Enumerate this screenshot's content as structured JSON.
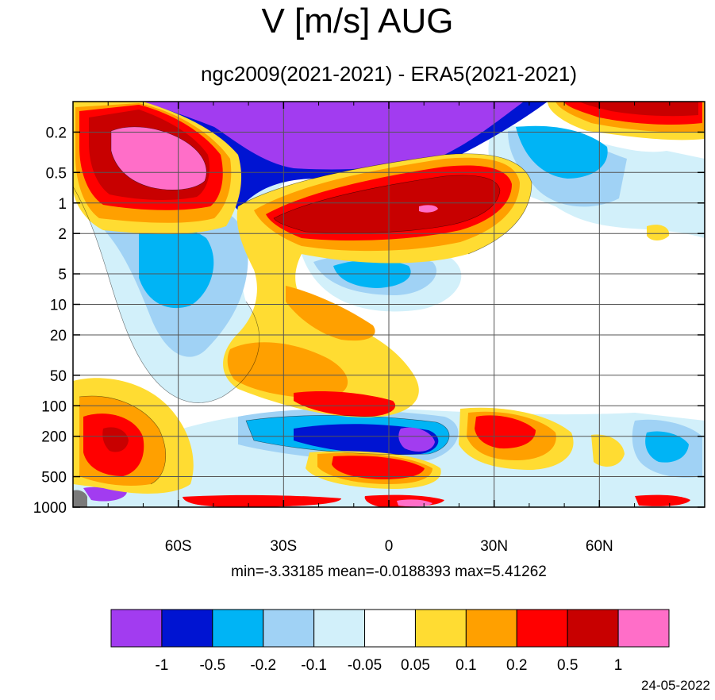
{
  "title": "V [m/s] AUG",
  "subtitle": "ngc2009(2021-2021) - ERA5(2021-2021)",
  "stats": "min=-3.33185   mean=-0.0188393   max=5.41262",
  "date": "24-05-2022",
  "chart_data": {
    "type": "heatmap",
    "title": "V [m/s] AUG",
    "subtitle": "ngc2009(2021-2021) - ERA5(2021-2021)",
    "x_ticks": [
      {
        "value": -60,
        "label": "60S"
      },
      {
        "value": -30,
        "label": "30S"
      },
      {
        "value": 0,
        "label": "0"
      },
      {
        "value": 30,
        "label": "30N"
      },
      {
        "value": 60,
        "label": "60N"
      }
    ],
    "y_ticks": [
      {
        "value": 0.2,
        "label": "0.2"
      },
      {
        "value": 0.5,
        "label": "0.5"
      },
      {
        "value": 1,
        "label": "1"
      },
      {
        "value": 2,
        "label": "2"
      },
      {
        "value": 5,
        "label": "5"
      },
      {
        "value": 10,
        "label": "10"
      },
      {
        "value": 20,
        "label": "20"
      },
      {
        "value": 50,
        "label": "50"
      },
      {
        "value": 100,
        "label": "100"
      },
      {
        "value": 200,
        "label": "200"
      },
      {
        "value": 500,
        "label": "500"
      },
      {
        "value": 1000,
        "label": "1000"
      }
    ],
    "xlim": [
      -90,
      90
    ],
    "ylim": [
      1000,
      0.1
    ],
    "y_scale": "log",
    "grid": true,
    "stats": {
      "min": -3.33185,
      "mean": -0.0188393,
      "max": 5.41262
    },
    "colorbar": {
      "levels": [
        "-1",
        "-0.5",
        "-0.2",
        "-0.1",
        "-0.05",
        "0.05",
        "0.1",
        "0.2",
        "0.5",
        "1"
      ],
      "colors": [
        "#a23cf0",
        "#0014d2",
        "#00b4f5",
        "#a0d2f5",
        "#d2f0fa",
        "#ffffff",
        "#ffdc32",
        "#ffa000",
        "#ff0000",
        "#c80000",
        "#ff6ec8"
      ]
    },
    "regions": [
      {
        "name": "upper-sh-jet",
        "lat": -62,
        "p": 0.3,
        "level": "1"
      },
      {
        "name": "upper-tropics",
        "lat": 5,
        "p": 1,
        "level": "1"
      },
      {
        "name": "upper-easterly",
        "lat": -15,
        "p": 0.15,
        "level": "-1"
      },
      {
        "name": "upper-nh",
        "lat": 60,
        "p": 0.15,
        "level": "0.5"
      },
      {
        "name": "sh-midlevel-negative",
        "lat": -60,
        "p": 5,
        "level": "-0.2"
      },
      {
        "name": "equator-5hpa",
        "lat": 0,
        "p": 5,
        "level": "-0.2"
      },
      {
        "name": "tropics-200hpa",
        "lat": 0,
        "p": 200,
        "level": "-0.5"
      },
      {
        "name": "sh-200hpa",
        "lat": -75,
        "p": 200,
        "level": "0.5"
      },
      {
        "name": "nh-200hpa",
        "lat": 30,
        "p": 200,
        "level": "0.2"
      },
      {
        "name": "nh-high-200hpa",
        "lat": 78,
        "p": 250,
        "level": "-0.2"
      }
    ]
  }
}
